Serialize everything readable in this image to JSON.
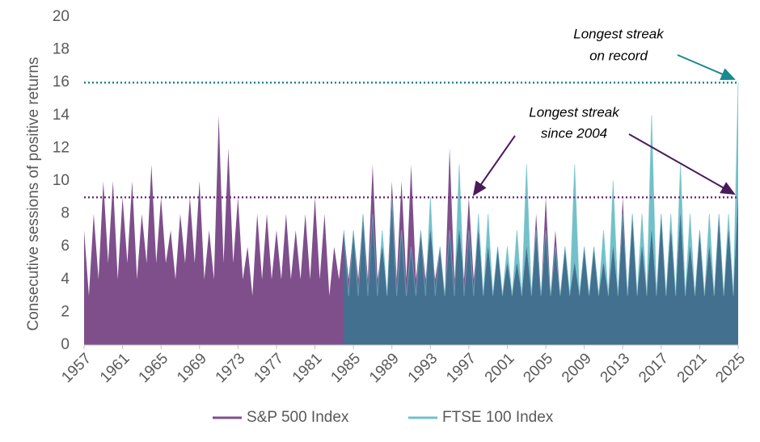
{
  "chart_data": {
    "type": "area",
    "y_label": "Consecutive sessions of positive returns",
    "xlim": [
      1957,
      2025
    ],
    "xticks": [
      1957,
      1961,
      1965,
      1969,
      1973,
      1977,
      1981,
      1985,
      1989,
      1993,
      1997,
      2001,
      2005,
      2009,
      2013,
      2017,
      2021,
      2025
    ],
    "ylim": [
      0,
      20
    ],
    "yticks": [
      0,
      2,
      4,
      6,
      8,
      10,
      12,
      14,
      16,
      18,
      20
    ],
    "overlap_color": "#44708f",
    "series": [
      {
        "name": "S&P 500 Index",
        "color": "#7f4f8c",
        "x": [
          1957,
          1957.5,
          1958,
          1958.5,
          1959,
          1959.5,
          1960,
          1960.5,
          1961,
          1961.5,
          1962,
          1962.5,
          1963,
          1963.5,
          1964,
          1964.5,
          1965,
          1965.5,
          1966,
          1966.5,
          1967,
          1967.5,
          1968,
          1968.5,
          1969,
          1969.5,
          1970,
          1970.5,
          1971,
          1971.5,
          1972,
          1972.5,
          1973,
          1973.5,
          1974,
          1974.5,
          1975,
          1975.5,
          1976,
          1976.5,
          1977,
          1977.5,
          1978,
          1978.5,
          1979,
          1979.5,
          1980,
          1980.5,
          1981,
          1981.5,
          1982,
          1982.5,
          1983,
          1983.5,
          1984,
          1984.5,
          1985,
          1985.5,
          1986,
          1986.5,
          1987,
          1987.5,
          1988,
          1988.5,
          1989,
          1989.5,
          1990,
          1990.5,
          1991,
          1991.5,
          1992,
          1992.5,
          1993,
          1993.5,
          1994,
          1994.5,
          1995,
          1995.5,
          1996,
          1996.5,
          1997,
          1997.5,
          1998,
          1998.5,
          1999,
          1999.5,
          2000,
          2000.5,
          2001,
          2001.5,
          2002,
          2002.5,
          2003,
          2003.5,
          2004,
          2004.5,
          2005,
          2005.5,
          2006,
          2006.5,
          2007,
          2007.5,
          2008,
          2008.5,
          2009,
          2009.5,
          2010,
          2010.5,
          2011,
          2011.5,
          2012,
          2012.5,
          2013,
          2013.5,
          2014,
          2014.5,
          2015,
          2015.5,
          2016,
          2016.5,
          2017,
          2017.5,
          2018,
          2018.5,
          2019,
          2019.5,
          2020,
          2020.5,
          2021,
          2021.5,
          2022,
          2022.5,
          2023,
          2023.5,
          2024,
          2024.5,
          2025
        ],
        "values": [
          7,
          3,
          8,
          4,
          10,
          5,
          10,
          4,
          9,
          5,
          10,
          4,
          8,
          5,
          11,
          5,
          9,
          5,
          7,
          4,
          8,
          5,
          9,
          5,
          10,
          4,
          7,
          4,
          14,
          5,
          12,
          5,
          9,
          4,
          6,
          3,
          8,
          4,
          8,
          4,
          7,
          4,
          8,
          4,
          7,
          4,
          8,
          4,
          9,
          4,
          8,
          3,
          6,
          4,
          7,
          4,
          7,
          4,
          8,
          4,
          11,
          4,
          6,
          3,
          10,
          4,
          10,
          4,
          11,
          4,
          7,
          4,
          7,
          4,
          6,
          3,
          12,
          4,
          7,
          4,
          9,
          4,
          7,
          3,
          6,
          3,
          6,
          3,
          5,
          3,
          5,
          3,
          6,
          3,
          8,
          3,
          9,
          3,
          7,
          3,
          6,
          3,
          5,
          3,
          6,
          3,
          6,
          3,
          5,
          3,
          6,
          3,
          9,
          3,
          8,
          3,
          6,
          3,
          7,
          3,
          8,
          3,
          7,
          3,
          8,
          3,
          6,
          3,
          7,
          3,
          6,
          3,
          8,
          3,
          7,
          3,
          9
        ]
      },
      {
        "name": "FTSE 100 Index",
        "color": "#72c1c9",
        "x": [
          1984,
          1984.5,
          1985,
          1985.5,
          1986,
          1986.5,
          1987,
          1987.5,
          1988,
          1988.5,
          1989,
          1989.5,
          1990,
          1990.5,
          1991,
          1991.5,
          1992,
          1992.5,
          1993,
          1993.5,
          1994,
          1994.5,
          1995,
          1995.5,
          1996,
          1996.5,
          1997,
          1997.5,
          1998,
          1998.5,
          1999,
          1999.5,
          2000,
          2000.5,
          2001,
          2001.5,
          2002,
          2002.5,
          2003,
          2003.5,
          2004,
          2004.5,
          2005,
          2005.5,
          2006,
          2006.5,
          2007,
          2007.5,
          2008,
          2008.5,
          2009,
          2009.5,
          2010,
          2010.5,
          2011,
          2011.5,
          2012,
          2012.5,
          2013,
          2013.5,
          2014,
          2014.5,
          2015,
          2015.5,
          2016,
          2016.5,
          2017,
          2017.5,
          2018,
          2018.5,
          2019,
          2019.5,
          2020,
          2020.5,
          2021,
          2021.5,
          2022,
          2022.5,
          2023,
          2023.5,
          2024,
          2024.5,
          2025
        ],
        "values": [
          7,
          3,
          7,
          3,
          8,
          3,
          8,
          3,
          7,
          3,
          9,
          3,
          7,
          3,
          6,
          3,
          7,
          3,
          9,
          3,
          6,
          3,
          7,
          3,
          11,
          3,
          7,
          3,
          8,
          3,
          8,
          3,
          6,
          3,
          6,
          3,
          7,
          3,
          11,
          3,
          7,
          3,
          7,
          3,
          6,
          3,
          6,
          3,
          11,
          3,
          6,
          3,
          6,
          3,
          7,
          3,
          10,
          3,
          8,
          3,
          8,
          3,
          8,
          3,
          14,
          3,
          8,
          3,
          8,
          3,
          11,
          3,
          8,
          3,
          7,
          3,
          8,
          3,
          8,
          3,
          8,
          3,
          16
        ]
      }
    ],
    "reference_lines": [
      {
        "value": 9,
        "color": "#6b2f7a"
      },
      {
        "value": 16,
        "color": "#17898f"
      }
    ],
    "annotations": [
      {
        "lines": [
          "Longest streak",
          "on record"
        ]
      },
      {
        "lines": [
          "Longest streak",
          "since 2004"
        ]
      }
    ]
  }
}
